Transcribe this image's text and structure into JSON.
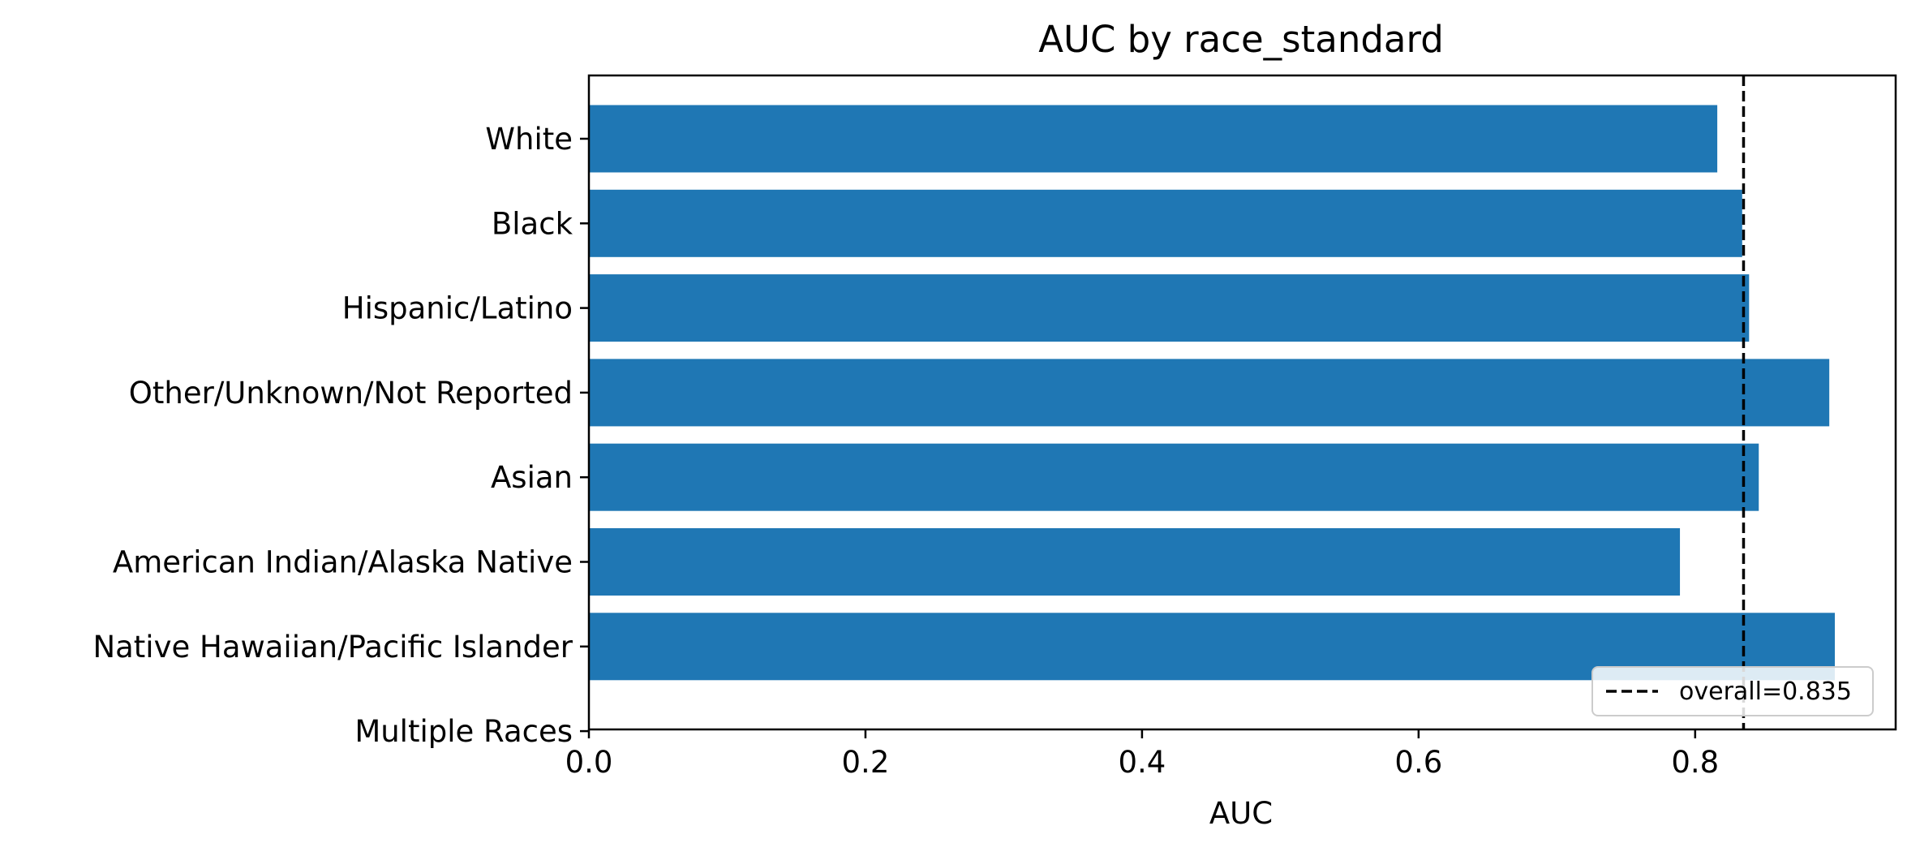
{
  "chart_data": {
    "type": "bar",
    "orientation": "horizontal",
    "title": "AUC by race_standard",
    "xlabel": "AUC",
    "ylabel": "",
    "categories": [
      "White",
      "Black",
      "Hispanic/Latino",
      "Other/Unknown/Not Reported",
      "Asian",
      "American Indian/Alaska Native",
      "Native Hawaiian/Pacific Islander",
      "Multiple Races"
    ],
    "values": [
      0.816,
      0.834,
      0.839,
      0.897,
      0.846,
      0.789,
      0.901,
      null
    ],
    "xlim": [
      0.0,
      0.945
    ],
    "xticks": [
      "0.0",
      "0.2",
      "0.4",
      "0.6",
      "0.8"
    ],
    "xtick_values": [
      0.0,
      0.2,
      0.4,
      0.6,
      0.8
    ],
    "bar_color": "#1f77b4",
    "reference_line": {
      "value": 0.835,
      "label": "overall=0.835",
      "style": "dashed",
      "color": "#000000"
    },
    "legend": {
      "entries": [
        "overall=0.835"
      ],
      "position": "lower-right"
    },
    "grid": false
  }
}
